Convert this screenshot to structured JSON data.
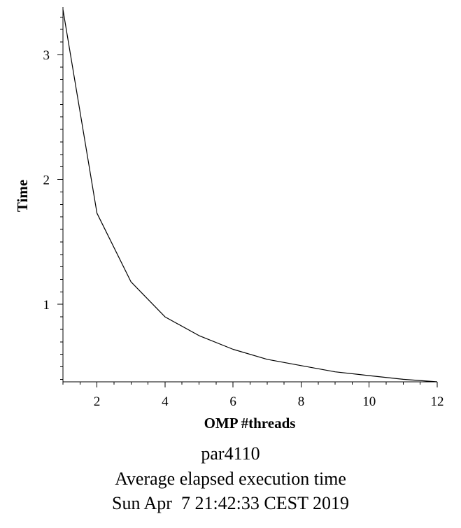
{
  "chart_data": {
    "type": "line",
    "xlabel": "OMP #threads",
    "ylabel": "Time",
    "xlim": [
      1,
      12
    ],
    "ylim": [
      0.38,
      3.38
    ],
    "x_ticks": [
      2,
      4,
      6,
      8,
      10,
      12
    ],
    "y_ticks": [
      1,
      2,
      3
    ],
    "grid": false,
    "series": [
      {
        "x": [
          1,
          2,
          3,
          4,
          5,
          6,
          7,
          8,
          9,
          10,
          11,
          12
        ],
        "y": [
          3.36,
          1.73,
          1.18,
          0.9,
          0.75,
          0.64,
          0.56,
          0.51,
          0.46,
          0.43,
          0.4,
          0.38
        ]
      }
    ],
    "captions": [
      "par4110",
      "Average elapsed execution time",
      "Sun Apr  7 21:42:33 CEST 2019"
    ]
  }
}
